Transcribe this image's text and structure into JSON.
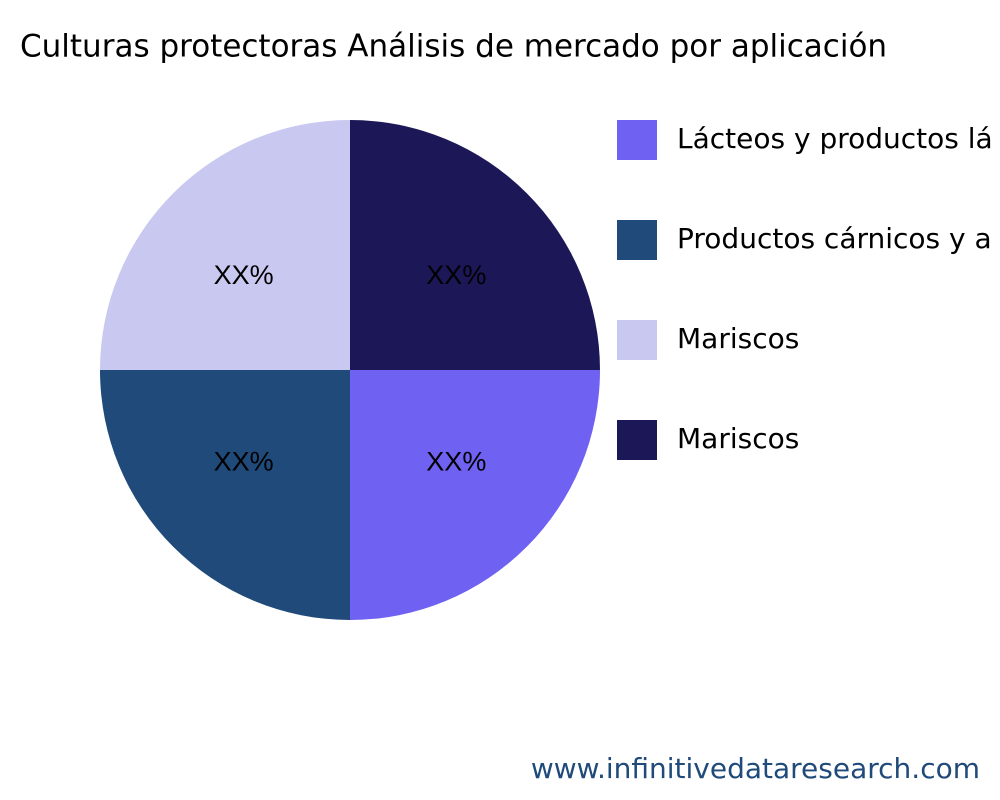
{
  "chart_data": {
    "type": "pie",
    "title": "Culturas protectoras Análisis de mercado por aplicación",
    "categories": [
      "Lácteos y productos lá",
      "Productos cárnicos y a",
      "Mariscos",
      "Mariscos"
    ],
    "values": [
      25,
      25,
      25,
      25
    ],
    "value_labels": [
      "XX%",
      "XX%",
      "XX%",
      "XX%"
    ],
    "colors": [
      "#6f61f2",
      "#1f4a7a",
      "#c8c8f0",
      "#1c1757"
    ],
    "legend": "right",
    "source": "www.infinitivedataresearch.com"
  }
}
